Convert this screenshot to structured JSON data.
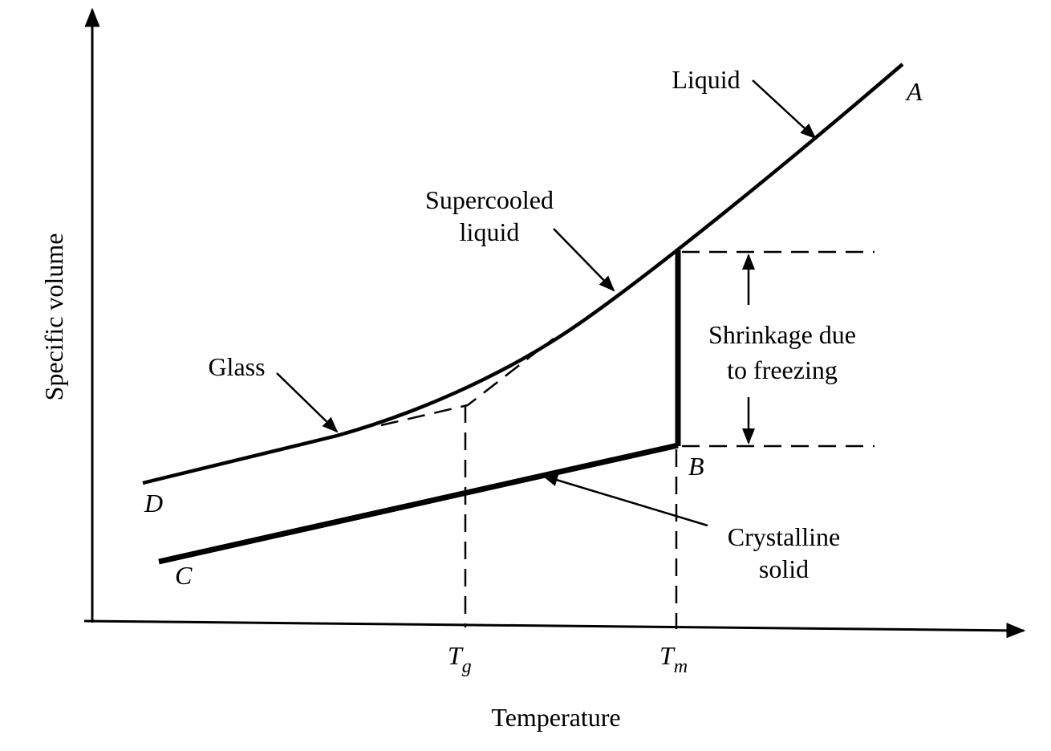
{
  "axes": {
    "x_label": "Temperature",
    "y_label": "Specific volume"
  },
  "ticks": [
    {
      "symbol": "T",
      "subscript": "g"
    },
    {
      "symbol": "T",
      "subscript": "m"
    }
  ],
  "points": {
    "A": "A",
    "B": "B",
    "C": "C",
    "D": "D"
  },
  "annotations": {
    "liquid": [
      "Liquid"
    ],
    "supercooled": [
      "Supercooled",
      "liquid"
    ],
    "glass": [
      "Glass"
    ],
    "shrinkage": [
      "Shrinkage due",
      "to freezing"
    ],
    "crystalline": [
      "Crystalline",
      "solid"
    ]
  }
}
